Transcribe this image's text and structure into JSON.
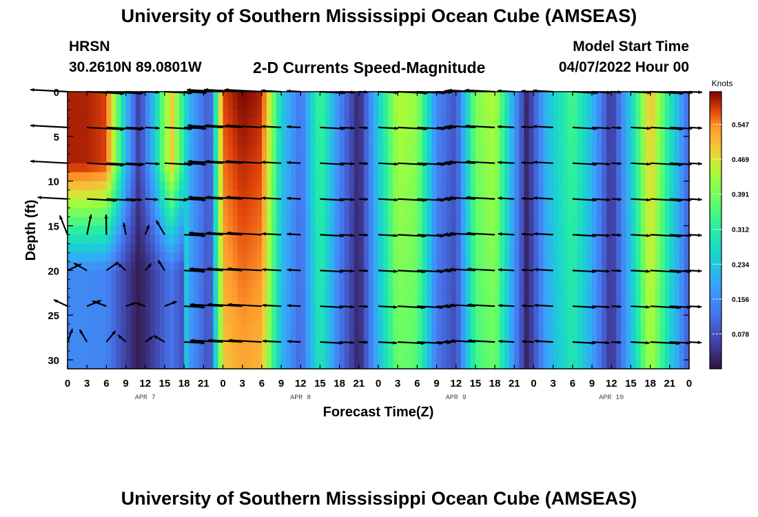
{
  "page": {
    "title_top": "University of Southern Mississippi Ocean Cube (AMSEAS)",
    "title_bottom": "University of Southern Mississippi Ocean Cube (AMSEAS)",
    "station": "HRSN",
    "coordinates": "30.2610N  89.0801W",
    "subtitle": "2-D Currents Speed-Magnitude",
    "model_start_label": "Model Start Time",
    "model_start_value": "04/07/2022 Hour 00"
  },
  "chart_data": {
    "type": "heatmap",
    "title": "2-D Currents Speed-Magnitude",
    "xlabel": "Forecast Time(Z)",
    "ylabel": "Depth (ft)",
    "x_ticks": [
      "0",
      "3",
      "6",
      "9",
      "12",
      "15",
      "18",
      "21",
      "0",
      "3",
      "6",
      "9",
      "12",
      "15",
      "18",
      "21",
      "0",
      "3",
      "6",
      "9",
      "12",
      "15",
      "18",
      "21",
      "0",
      "3",
      "6",
      "9",
      "12",
      "15",
      "18",
      "21",
      "0"
    ],
    "day_labels": [
      {
        "label": "APR 7",
        "hour": 12
      },
      {
        "label": "APR 8",
        "hour": 36
      },
      {
        "label": "APR 9",
        "hour": 60
      },
      {
        "label": "APR 10",
        "hour": 84
      }
    ],
    "x_range_hours": [
      0,
      96
    ],
    "y_ticks": [
      0,
      5,
      10,
      15,
      20,
      25,
      30
    ],
    "y_range_ft": [
      0,
      31
    ],
    "colorbar": {
      "title": "Knots",
      "tick_values": [
        "0.547",
        "0.469",
        "0.391",
        "0.312",
        "0.234",
        "0.156",
        "0.078"
      ],
      "range": [
        0.0,
        0.62
      ]
    },
    "speed_columns_surface": [
      {
        "hour": 0,
        "speed": 0.6
      },
      {
        "hour": 3,
        "speed": 0.6
      },
      {
        "hour": 6,
        "speed": 0.58
      },
      {
        "hour": 9,
        "speed": 0.22
      },
      {
        "hour": 11,
        "speed": 0.05
      },
      {
        "hour": 13,
        "speed": 0.2
      },
      {
        "hour": 16,
        "speed": 0.5
      },
      {
        "hour": 19,
        "speed": 0.2
      },
      {
        "hour": 22,
        "speed": 0.08
      },
      {
        "hour": 24,
        "speed": 0.58
      },
      {
        "hour": 27,
        "speed": 0.62
      },
      {
        "hour": 30,
        "speed": 0.6
      },
      {
        "hour": 33,
        "speed": 0.25
      },
      {
        "hour": 36,
        "speed": 0.12
      },
      {
        "hour": 39,
        "speed": 0.35
      },
      {
        "hour": 42,
        "speed": 0.15
      },
      {
        "hour": 45,
        "speed": 0.02
      },
      {
        "hour": 48,
        "speed": 0.25
      },
      {
        "hour": 51,
        "speed": 0.45
      },
      {
        "hour": 54,
        "speed": 0.42
      },
      {
        "hour": 57,
        "speed": 0.15
      },
      {
        "hour": 60,
        "speed": 0.08
      },
      {
        "hour": 63,
        "speed": 0.4
      },
      {
        "hour": 66,
        "speed": 0.45
      },
      {
        "hour": 69,
        "speed": 0.18
      },
      {
        "hour": 71,
        "speed": 0.02
      },
      {
        "hour": 74,
        "speed": 0.22
      },
      {
        "hour": 78,
        "speed": 0.35
      },
      {
        "hour": 81,
        "speed": 0.22
      },
      {
        "hour": 84,
        "speed": 0.04
      },
      {
        "hour": 87,
        "speed": 0.25
      },
      {
        "hour": 90,
        "speed": 0.52
      },
      {
        "hour": 93,
        "speed": 0.3
      },
      {
        "hour": 96,
        "speed": 0.1
      }
    ]
  },
  "colors": {
    "background": "#ffffff",
    "vector": "#000000",
    "axis": "#000000"
  }
}
